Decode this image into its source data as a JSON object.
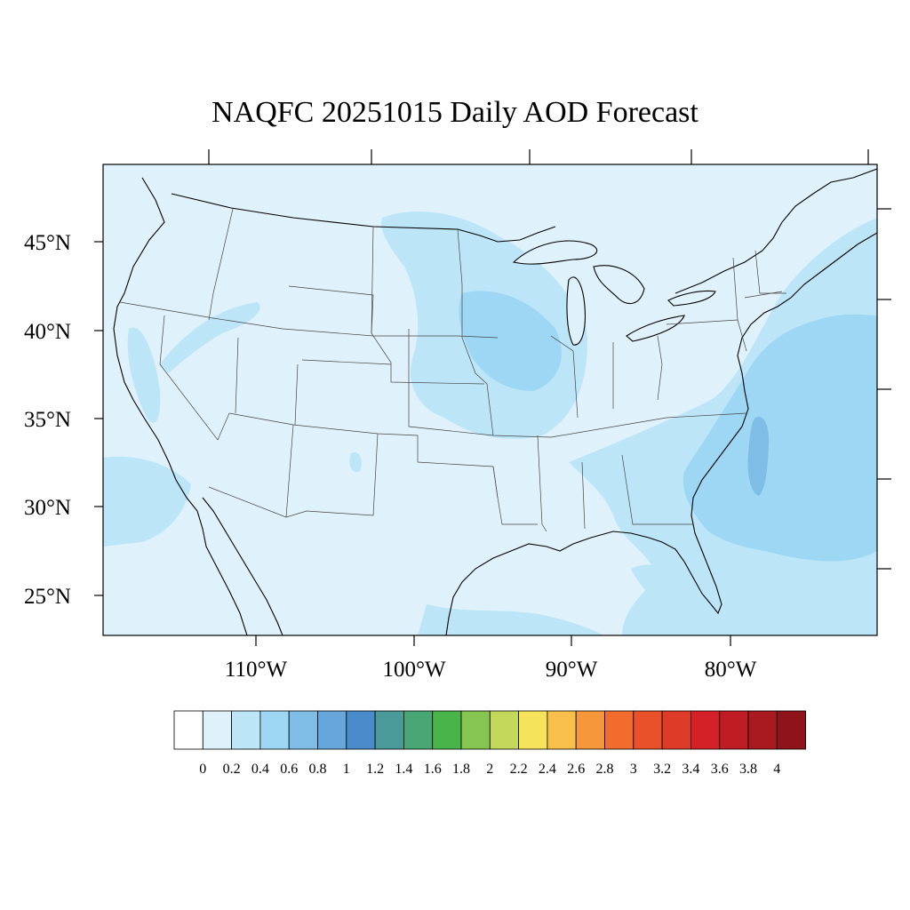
{
  "title": "NAQFC 20251015 Daily AOD Forecast",
  "lat_labels": [
    "45°N",
    "40°N",
    "35°N",
    "30°N",
    "25°N"
  ],
  "lon_labels": [
    "110°W",
    "100°W",
    "90°W",
    "80°W"
  ],
  "colorbar": {
    "labels": [
      "0",
      "0.2",
      "0.4",
      "0.6",
      "0.8",
      "1",
      "1.2",
      "1.4",
      "1.6",
      "1.8",
      "2",
      "2.2",
      "2.4",
      "2.6",
      "2.8",
      "3",
      "3.2",
      "3.4",
      "3.6",
      "3.8",
      "4"
    ],
    "colors": [
      "#ffffff",
      "#dff2fb",
      "#bce6f8",
      "#9dd7f4",
      "#7fbde6",
      "#67a6da",
      "#4a8bca",
      "#4a9a9a",
      "#49a675",
      "#49b44a",
      "#86c650",
      "#c4d95c",
      "#f6e35c",
      "#f8c04a",
      "#f7973c",
      "#f16c2d",
      "#e9512b",
      "#de3a28",
      "#d42127",
      "#bf1c24",
      "#a81a20",
      "#8e1419"
    ]
  },
  "colors": {
    "ocean_background": "#dff2fb",
    "aod_0_4_band": "#bce6f8",
    "aod_0_6_band": "#9dd7f4",
    "aod_0_8_band": "#7fbde6"
  }
}
